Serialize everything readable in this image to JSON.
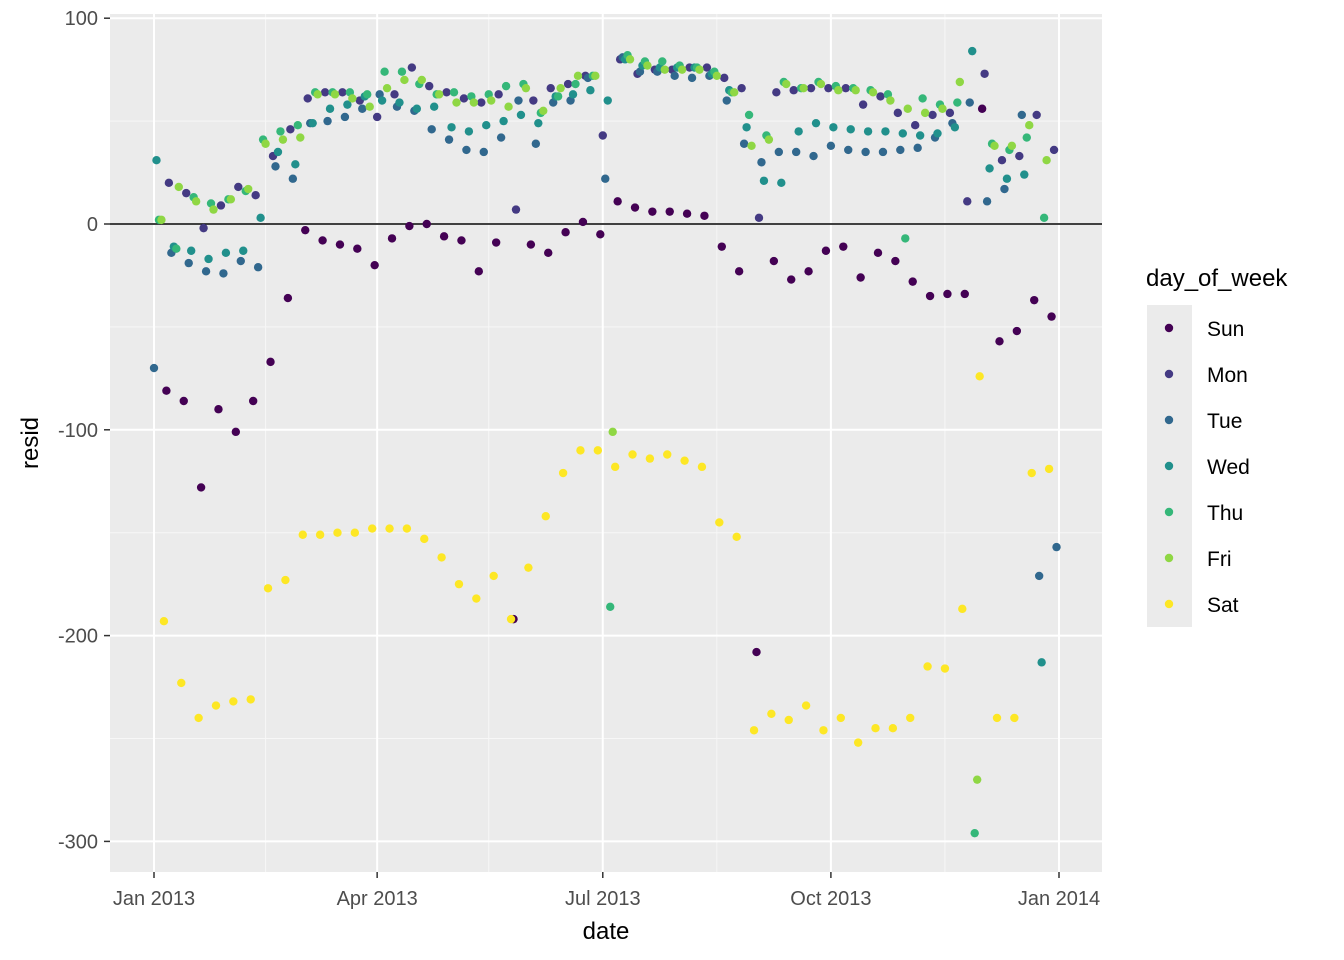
{
  "chart_data": {
    "type": "scatter",
    "title": "",
    "xlabel": "date",
    "ylabel": "resid",
    "xlim": [
      "2012-12-20",
      "2014-01-15"
    ],
    "ylim": [
      -315,
      102
    ],
    "x_ticks": [
      {
        "date": "2013-01-01",
        "label": "Jan 2013"
      },
      {
        "date": "2013-04-01",
        "label": "Apr 2013"
      },
      {
        "date": "2013-07-01",
        "label": "Jul 2013"
      },
      {
        "date": "2013-10-01",
        "label": "Oct 2013"
      },
      {
        "date": "2014-01-01",
        "label": "Jan 2014"
      }
    ],
    "y_ticks": [
      100,
      0,
      -100,
      -200,
      -300
    ],
    "y_tick_labels": [
      "100",
      "0",
      "-100",
      "-200",
      "-300"
    ],
    "reference_line": 0,
    "grid": true,
    "legend": {
      "title": "day_of_week",
      "position": "right"
    },
    "series": [
      {
        "name": "Sun",
        "color": "#440154",
        "dates": [
          "2013-01-06",
          "2013-01-13",
          "2013-01-20",
          "2013-01-27",
          "2013-02-03",
          "2013-02-10",
          "2013-02-17",
          "2013-02-24",
          "2013-03-03",
          "2013-03-10",
          "2013-03-17",
          "2013-03-24",
          "2013-03-31",
          "2013-04-07",
          "2013-04-14",
          "2013-04-21",
          "2013-04-28",
          "2013-05-05",
          "2013-05-12",
          "2013-05-19",
          "2013-05-26",
          "2013-06-02",
          "2013-06-09",
          "2013-06-16",
          "2013-06-23",
          "2013-06-30",
          "2013-07-07",
          "2013-07-14",
          "2013-07-21",
          "2013-07-28",
          "2013-08-04",
          "2013-08-11",
          "2013-08-18",
          "2013-08-25",
          "2013-09-01",
          "2013-09-08",
          "2013-09-15",
          "2013-09-22",
          "2013-09-29",
          "2013-10-06",
          "2013-10-13",
          "2013-10-20",
          "2013-10-27",
          "2013-11-03",
          "2013-11-10",
          "2013-11-17",
          "2013-11-24",
          "2013-12-01",
          "2013-12-08",
          "2013-12-15",
          "2013-12-22",
          "2013-12-29"
        ],
        "values": [
          -81,
          -86,
          -128,
          -90,
          -101,
          -86,
          -67,
          -36,
          -3,
          -8,
          -10,
          -12,
          -20,
          -7,
          -1,
          0,
          -6,
          -8,
          -23,
          -9,
          -192,
          -10,
          -14,
          -4,
          1,
          -5,
          11,
          8,
          6,
          6,
          5,
          4,
          -11,
          -23,
          -208,
          -18,
          -27,
          -23,
          -13,
          -11,
          -26,
          -14,
          -18,
          -28,
          -35,
          -34,
          -34,
          56,
          -57,
          -52,
          -37,
          -45
        ]
      },
      {
        "name": "Mon",
        "color": "#443A83",
        "dates": [
          "2013-01-07",
          "2013-01-14",
          "2013-01-21",
          "2013-01-28",
          "2013-02-04",
          "2013-02-11",
          "2013-02-18",
          "2013-02-25",
          "2013-03-04",
          "2013-03-11",
          "2013-03-18",
          "2013-03-25",
          "2013-04-01",
          "2013-04-08",
          "2013-04-15",
          "2013-04-22",
          "2013-04-29",
          "2013-05-06",
          "2013-05-13",
          "2013-05-20",
          "2013-05-27",
          "2013-06-03",
          "2013-06-10",
          "2013-06-17",
          "2013-06-24",
          "2013-07-01",
          "2013-07-08",
          "2013-07-15",
          "2013-07-22",
          "2013-07-29",
          "2013-08-05",
          "2013-08-12",
          "2013-08-19",
          "2013-08-26",
          "2013-09-02",
          "2013-09-09",
          "2013-09-16",
          "2013-09-23",
          "2013-09-30",
          "2013-10-07",
          "2013-10-14",
          "2013-10-21",
          "2013-10-28",
          "2013-11-04",
          "2013-11-11",
          "2013-11-18",
          "2013-11-25",
          "2013-12-02",
          "2013-12-09",
          "2013-12-16",
          "2013-12-23",
          "2013-12-30"
        ],
        "values": [
          20,
          15,
          -2,
          9,
          18,
          14,
          33,
          46,
          61,
          64,
          64,
          60,
          52,
          63,
          76,
          67,
          64,
          61,
          59,
          63,
          7,
          60,
          66,
          68,
          72,
          43,
          80,
          73,
          75,
          75,
          76,
          76,
          71,
          66,
          3,
          64,
          65,
          66,
          66,
          66,
          58,
          62,
          54,
          48,
          53,
          54,
          11,
          73,
          31,
          33,
          53,
          36
        ]
      },
      {
        "name": "Tue",
        "color": "#31688E",
        "dates": [
          "2013-01-01",
          "2013-01-08",
          "2013-01-15",
          "2013-01-22",
          "2013-01-29",
          "2013-02-05",
          "2013-02-12",
          "2013-02-19",
          "2013-02-26",
          "2013-03-05",
          "2013-03-12",
          "2013-03-19",
          "2013-03-26",
          "2013-04-02",
          "2013-04-09",
          "2013-04-16",
          "2013-04-23",
          "2013-04-30",
          "2013-05-07",
          "2013-05-14",
          "2013-05-21",
          "2013-05-28",
          "2013-06-04",
          "2013-06-11",
          "2013-06-18",
          "2013-06-25",
          "2013-07-02",
          "2013-07-09",
          "2013-07-16",
          "2013-07-23",
          "2013-07-30",
          "2013-08-06",
          "2013-08-13",
          "2013-08-20",
          "2013-08-27",
          "2013-09-03",
          "2013-09-10",
          "2013-09-17",
          "2013-09-24",
          "2013-10-01",
          "2013-10-08",
          "2013-10-15",
          "2013-10-22",
          "2013-10-29",
          "2013-11-05",
          "2013-11-12",
          "2013-11-19",
          "2013-11-26",
          "2013-12-03",
          "2013-12-10",
          "2013-12-17",
          "2013-12-24",
          "2013-12-31"
        ],
        "values": [
          -70,
          -14,
          -19,
          -23,
          -24,
          -18,
          -21,
          28,
          22,
          49,
          50,
          52,
          56,
          63,
          57,
          55,
          46,
          41,
          36,
          35,
          42,
          60,
          39,
          59,
          60,
          71,
          22,
          81,
          74,
          74,
          72,
          71,
          72,
          60,
          39,
          30,
          35,
          35,
          33,
          38,
          36,
          35,
          35,
          36,
          37,
          42,
          49,
          59,
          11,
          17,
          53,
          -171,
          -157
        ]
      },
      {
        "name": "Wed",
        "color": "#21908C",
        "dates": [
          "2013-01-02",
          "2013-01-09",
          "2013-01-16",
          "2013-01-23",
          "2013-01-30",
          "2013-02-06",
          "2013-02-13",
          "2013-02-20",
          "2013-02-27",
          "2013-03-06",
          "2013-03-13",
          "2013-03-20",
          "2013-03-27",
          "2013-04-03",
          "2013-04-10",
          "2013-04-17",
          "2013-04-24",
          "2013-05-01",
          "2013-05-08",
          "2013-05-15",
          "2013-05-22",
          "2013-05-29",
          "2013-06-05",
          "2013-06-12",
          "2013-06-19",
          "2013-06-26",
          "2013-07-03",
          "2013-07-10",
          "2013-07-17",
          "2013-07-24",
          "2013-07-31",
          "2013-08-07",
          "2013-08-14",
          "2013-08-21",
          "2013-08-28",
          "2013-09-04",
          "2013-09-11",
          "2013-09-18",
          "2013-09-25",
          "2013-10-02",
          "2013-10-09",
          "2013-10-16",
          "2013-10-23",
          "2013-10-30",
          "2013-11-06",
          "2013-11-13",
          "2013-11-20",
          "2013-11-27",
          "2013-12-04",
          "2013-12-11",
          "2013-12-18",
          "2013-12-25"
        ],
        "values": [
          31,
          -11,
          -13,
          -17,
          -14,
          -13,
          3,
          35,
          29,
          49,
          56,
          58,
          62,
          60,
          59,
          56,
          57,
          47,
          45,
          48,
          50,
          53,
          49,
          62,
          63,
          65,
          60,
          80,
          77,
          76,
          76,
          76,
          73,
          65,
          47,
          21,
          20,
          45,
          49,
          47,
          46,
          45,
          45,
          44,
          43,
          44,
          47,
          84,
          27,
          22,
          24,
          -213
        ]
      },
      {
        "name": "Thu",
        "color": "#35B779",
        "dates": [
          "2013-01-03",
          "2013-01-10",
          "2013-01-17",
          "2013-01-24",
          "2013-01-31",
          "2013-02-07",
          "2013-02-14",
          "2013-02-21",
          "2013-02-28",
          "2013-03-07",
          "2013-03-14",
          "2013-03-21",
          "2013-03-28",
          "2013-04-04",
          "2013-04-11",
          "2013-04-18",
          "2013-04-25",
          "2013-05-02",
          "2013-05-09",
          "2013-05-16",
          "2013-05-23",
          "2013-05-30",
          "2013-06-06",
          "2013-06-13",
          "2013-06-20",
          "2013-06-27",
          "2013-07-04",
          "2013-07-11",
          "2013-07-18",
          "2013-07-25",
          "2013-08-01",
          "2013-08-08",
          "2013-08-15",
          "2013-08-22",
          "2013-08-29",
          "2013-09-05",
          "2013-09-12",
          "2013-09-19",
          "2013-09-26",
          "2013-10-03",
          "2013-10-10",
          "2013-10-17",
          "2013-10-24",
          "2013-10-31",
          "2013-11-07",
          "2013-11-14",
          "2013-11-21",
          "2013-11-28",
          "2013-12-05",
          "2013-12-12",
          "2013-12-19",
          "2013-12-26"
        ],
        "values": [
          2,
          -12,
          13,
          10,
          12,
          16,
          41,
          45,
          48,
          64,
          64,
          64,
          63,
          74,
          74,
          68,
          63,
          64,
          62,
          63,
          67,
          68,
          54,
          62,
          68,
          72,
          -186,
          82,
          79,
          79,
          77,
          76,
          74,
          64,
          53,
          43,
          69,
          66,
          69,
          67,
          66,
          65,
          63,
          -7,
          61,
          58,
          59,
          -296,
          39,
          36,
          42,
          3
        ]
      },
      {
        "name": "Fri",
        "color": "#8FD744",
        "dates": [
          "2013-01-04",
          "2013-01-11",
          "2013-01-18",
          "2013-01-25",
          "2013-02-01",
          "2013-02-08",
          "2013-02-15",
          "2013-02-22",
          "2013-03-01",
          "2013-03-08",
          "2013-03-15",
          "2013-03-22",
          "2013-03-29",
          "2013-04-05",
          "2013-04-12",
          "2013-04-19",
          "2013-04-26",
          "2013-05-03",
          "2013-05-10",
          "2013-05-17",
          "2013-05-24",
          "2013-05-31",
          "2013-06-07",
          "2013-06-14",
          "2013-06-21",
          "2013-06-28",
          "2013-07-05",
          "2013-07-12",
          "2013-07-19",
          "2013-07-26",
          "2013-08-02",
          "2013-08-09",
          "2013-08-16",
          "2013-08-23",
          "2013-08-30",
          "2013-09-06",
          "2013-09-13",
          "2013-09-20",
          "2013-09-27",
          "2013-10-04",
          "2013-10-11",
          "2013-10-18",
          "2013-10-25",
          "2013-11-01",
          "2013-11-08",
          "2013-11-15",
          "2013-11-22",
          "2013-11-29",
          "2013-12-06",
          "2013-12-13",
          "2013-12-20",
          "2013-12-27"
        ],
        "values": [
          2,
          18,
          11,
          7,
          12,
          17,
          39,
          41,
          42,
          63,
          63,
          61,
          57,
          66,
          70,
          70,
          63,
          59,
          59,
          60,
          57,
          66,
          55,
          66,
          72,
          72,
          -101,
          80,
          77,
          75,
          75,
          75,
          72,
          64,
          38,
          41,
          68,
          66,
          68,
          65,
          65,
          64,
          60,
          56,
          54,
          56,
          69,
          -270,
          38,
          38,
          48,
          31
        ]
      },
      {
        "name": "Sat",
        "color": "#FDE725",
        "dates": [
          "2013-01-05",
          "2013-01-12",
          "2013-01-19",
          "2013-01-26",
          "2013-02-02",
          "2013-02-09",
          "2013-02-16",
          "2013-02-23",
          "2013-03-02",
          "2013-03-09",
          "2013-03-16",
          "2013-03-23",
          "2013-03-30",
          "2013-04-06",
          "2013-04-13",
          "2013-04-20",
          "2013-04-27",
          "2013-05-04",
          "2013-05-11",
          "2013-05-18",
          "2013-05-25",
          "2013-06-01",
          "2013-06-08",
          "2013-06-15",
          "2013-06-22",
          "2013-06-29",
          "2013-07-06",
          "2013-07-13",
          "2013-07-20",
          "2013-07-27",
          "2013-08-03",
          "2013-08-10",
          "2013-08-17",
          "2013-08-24",
          "2013-08-31",
          "2013-09-07",
          "2013-09-14",
          "2013-09-21",
          "2013-09-28",
          "2013-10-05",
          "2013-10-12",
          "2013-10-19",
          "2013-10-26",
          "2013-11-02",
          "2013-11-09",
          "2013-11-16",
          "2013-11-23",
          "2013-11-30",
          "2013-12-07",
          "2013-12-14",
          "2013-12-21",
          "2013-12-28"
        ],
        "values": [
          -193,
          -223,
          -240,
          -234,
          -232,
          -231,
          -177,
          -173,
          -151,
          -151,
          -150,
          -150,
          -148,
          -148,
          -148,
          -153,
          -162,
          -175,
          -182,
          -171,
          -192,
          -167,
          -142,
          -121,
          -110,
          -110,
          -118,
          -112,
          -114,
          -112,
          -115,
          -118,
          -145,
          -152,
          -246,
          -238,
          -241,
          -234,
          -246,
          -240,
          -252,
          -245,
          -245,
          -240,
          -215,
          -216,
          -187,
          -74,
          -240,
          -240,
          -121,
          -119
        ]
      }
    ]
  }
}
